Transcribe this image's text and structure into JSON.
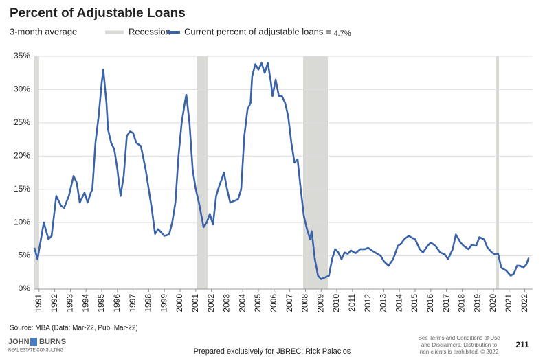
{
  "chart_data": {
    "type": "line",
    "title": "Percent of Adjustable Loans",
    "subtitle": "3-month average",
    "recessions": {
      "name": "Recession",
      "color": "#d9d9d6",
      "spans": [
        [
          1990.7,
          1991.0
        ],
        [
          2001.05,
          2001.75
        ],
        [
          2007.85,
          2009.43
        ],
        [
          2020.13,
          2020.35
        ]
      ]
    },
    "current_label": "4.7%",
    "series": [
      {
        "name": "Current percent of adjustable loans =",
        "color": "#3a63a8",
        "x": [
          1990.7,
          1990.9,
          1991.3,
          1991.6,
          1991.8,
          1992.1,
          1992.4,
          1992.6,
          1992.9,
          1993.2,
          1993.4,
          1993.6,
          1993.9,
          1994.1,
          1994.3,
          1994.4,
          1994.6,
          1994.8,
          1995.0,
          1995.1,
          1995.3,
          1995.4,
          1995.6,
          1995.8,
          1996.0,
          1996.2,
          1996.4,
          1996.6,
          1996.8,
          1997.0,
          1997.2,
          1997.5,
          1997.8,
          1998.0,
          1998.2,
          1998.4,
          1998.6,
          1998.8,
          1999.0,
          1999.3,
          1999.5,
          1999.7,
          1999.9,
          2000.1,
          2000.3,
          2000.4,
          2000.6,
          2000.8,
          2001.0,
          2001.2,
          2001.5,
          2001.7,
          2001.9,
          2002.1,
          2002.3,
          2002.5,
          2002.8,
          2003.0,
          2003.2,
          2003.5,
          2003.7,
          2003.9,
          2004.1,
          2004.3,
          2004.5,
          2004.6,
          2004.8,
          2005.0,
          2005.2,
          2005.4,
          2005.6,
          2005.8,
          2005.9,
          2006.1,
          2006.3,
          2006.5,
          2006.7,
          2006.9,
          2007.1,
          2007.3,
          2007.5,
          2007.7,
          2007.9,
          2008.1,
          2008.3,
          2008.4,
          2008.6,
          2008.8,
          2009.0,
          2009.3,
          2009.5,
          2009.7,
          2009.9,
          2010.1,
          2010.3,
          2010.5,
          2010.7,
          2010.9,
          2011.2,
          2011.5,
          2011.8,
          2012.0,
          2012.3,
          2012.6,
          2012.8,
          2013.0,
          2013.3,
          2013.6,
          2013.9,
          2014.1,
          2014.3,
          2014.6,
          2014.8,
          2015.0,
          2015.3,
          2015.5,
          2015.8,
          2016.0,
          2016.3,
          2016.6,
          2016.9,
          2017.1,
          2017.4,
          2017.6,
          2017.9,
          2018.1,
          2018.4,
          2018.6,
          2018.9,
          2019.1,
          2019.4,
          2019.6,
          2019.9,
          2020.1,
          2020.3,
          2020.5,
          2020.8,
          2021.1,
          2021.3,
          2021.5,
          2021.7,
          2021.9,
          2022.1,
          2022.25
        ],
        "values": [
          6.2,
          4.5,
          10,
          7.5,
          8,
          14,
          12.5,
          12.2,
          14,
          17,
          16,
          13,
          14.5,
          13,
          14.5,
          15,
          22,
          26,
          31,
          33,
          28,
          24,
          22,
          21,
          18,
          14,
          17,
          23,
          23.7,
          23.5,
          22,
          21.5,
          18,
          15,
          12,
          8.3,
          9,
          8.5,
          8,
          8.2,
          10,
          13,
          20,
          25,
          28,
          29.2,
          25,
          18,
          15,
          13,
          9.3,
          10,
          11.3,
          9.7,
          14,
          15.5,
          17.5,
          15,
          13,
          13.3,
          13.5,
          15,
          23,
          27,
          28,
          32,
          33.8,
          33,
          34,
          32.5,
          34,
          31,
          29,
          31.5,
          29,
          29,
          28,
          26,
          22,
          19,
          19.5,
          15,
          11,
          9,
          7.5,
          8.7,
          4.5,
          2,
          1.5,
          1.8,
          2,
          4.5,
          6,
          5.5,
          4.5,
          5.5,
          5.3,
          5.8,
          5.4,
          6,
          6,
          6.2,
          5.7,
          5.3,
          5,
          4.2,
          3.5,
          4.5,
          6.5,
          6.8,
          7.5,
          8,
          7.7,
          7.5,
          6,
          5.5,
          6.5,
          7,
          6.5,
          5.5,
          5.2,
          4.5,
          6,
          8.2,
          7,
          6.5,
          6,
          6.6,
          6.5,
          7.8,
          7.5,
          6.3,
          5.5,
          5.2,
          5.3,
          3.2,
          2.8,
          2,
          2.3,
          3.5,
          3.5,
          3.2,
          3.7,
          4.7
        ]
      }
    ],
    "xlim": [
      1990.7,
      2022.5
    ],
    "xticks": [
      1991,
      1992,
      1993,
      1994,
      1995,
      1996,
      1997,
      1998,
      1999,
      2000,
      2001,
      2002,
      2003,
      2004,
      2005,
      2006,
      2007,
      2008,
      2009,
      2010,
      2011,
      2012,
      2013,
      2014,
      2015,
      2016,
      2017,
      2018,
      2019,
      2020,
      2021,
      2022
    ],
    "ylim": [
      0,
      35
    ],
    "yticks": [
      {
        "value": 0,
        "label": "0%"
      },
      {
        "value": 5,
        "label": "5%"
      },
      {
        "value": 10,
        "label": "10%"
      },
      {
        "value": 15,
        "label": "15%"
      },
      {
        "value": 20,
        "label": "20%"
      },
      {
        "value": 25,
        "label": "25%"
      },
      {
        "value": 30,
        "label": "30%"
      },
      {
        "value": 35,
        "label": "35%"
      }
    ],
    "grid": true,
    "source": "Source: MBA (Data: Mar-22, Pub: Mar-22)"
  },
  "footer": {
    "logo": [
      "JOHN",
      "BURNS",
      "REAL ESTATE CONSULTING"
    ],
    "prepared": "Prepared exclusively for JBREC: Rick Palacios",
    "disclaimer": [
      "See Terms and Conditions of Use",
      "and Disclaimers. Distribution to",
      "non-clients is prohibited. © 2022"
    ],
    "page": "211"
  }
}
